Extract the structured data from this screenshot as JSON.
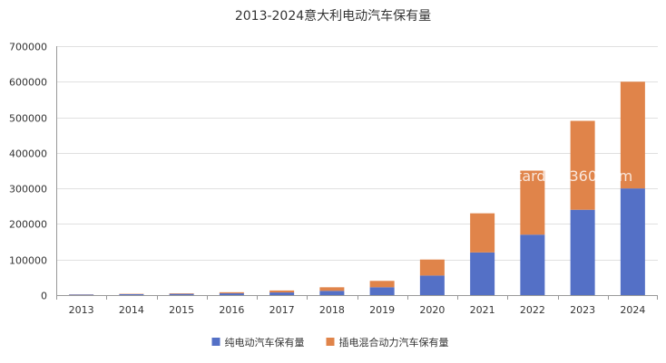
{
  "chart_data": {
    "type": "bar",
    "stacked": true,
    "title": "2013-2024意大利电动汽车保有量",
    "xlabel": "",
    "ylabel": "",
    "categories": [
      "2013",
      "2014",
      "2015",
      "2016",
      "2017",
      "2018",
      "2019",
      "2020",
      "2021",
      "2022",
      "2023",
      "2024"
    ],
    "ylim": [
      0,
      700000
    ],
    "yticks": [
      "0",
      "100000",
      "200000",
      "300000",
      "400000",
      "500000",
      "600000",
      "700000"
    ],
    "grid": true,
    "legend_position": "bottom",
    "series": [
      {
        "name": "纯电动汽车保有量",
        "color": "#5470c6",
        "values": [
          1500,
          2500,
          3500,
          5000,
          7500,
          12000,
          22000,
          55000,
          120000,
          170000,
          240000,
          300000
        ]
      },
      {
        "name": "插电混合动力汽车保有量",
        "color": "#e0844a",
        "values": [
          500,
          1000,
          1500,
          3000,
          5500,
          10000,
          18000,
          45000,
          110000,
          180000,
          250000,
          300000
        ]
      }
    ],
    "watermark": "stardata360.com"
  }
}
